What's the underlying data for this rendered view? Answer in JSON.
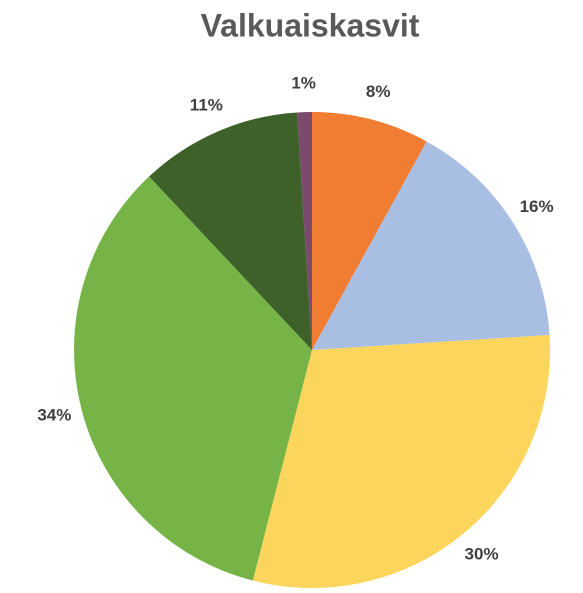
{
  "chart_data": {
    "type": "pie",
    "title": "Valkuaiskasvit",
    "values": [
      8,
      16,
      30,
      34,
      11,
      1
    ],
    "value_labels": [
      "8%",
      "16%",
      "30%",
      "34%",
      "11%",
      "1%"
    ],
    "colors": [
      "#f07d32",
      "#a9bee3",
      "#fcd55c",
      "#77b448",
      "#3d6129",
      "#7a4b6d"
    ]
  }
}
